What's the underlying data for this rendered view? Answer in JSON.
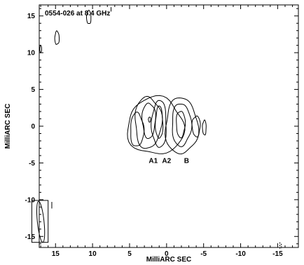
{
  "chart_data": {
    "type": "contour",
    "title": "0554-026 at 8.4 GHz",
    "xlabel": "MilliARC SEC",
    "ylabel": "MilliARC SEC",
    "xlim": [
      17.2,
      -17.8
    ],
    "ylim": [
      -16.5,
      16.5
    ],
    "x_ticks": [
      15,
      10,
      5,
      0,
      -5,
      -10,
      -15
    ],
    "y_ticks": [
      15,
      10,
      5,
      0,
      -5,
      -10,
      -15
    ],
    "x_tick_labels": [
      "15",
      "10",
      "5",
      "0",
      "-5",
      "-10",
      "-15"
    ],
    "y_tick_labels": [
      "15",
      "10",
      "5",
      "0",
      "-5",
      "-10",
      "-15"
    ],
    "annotations": [
      {
        "text": "A1",
        "x": 1.8,
        "y": -5.0
      },
      {
        "text": "A2",
        "x": 0.0,
        "y": -5.0
      },
      {
        "text": "B",
        "x": -2.7,
        "y": -5.0
      }
    ],
    "components": [
      {
        "name": "A1",
        "x": 2.5,
        "y": 0.8
      },
      {
        "name": "A2",
        "x": 1.2,
        "y": 0.5
      },
      {
        "name": "B",
        "x": -2.0,
        "y": 0.3
      }
    ],
    "contours": [
      {
        "component": "A-outer",
        "cx": 1.5,
        "cy": 0.0,
        "rx": 3.8,
        "ry": 3.9,
        "level": 1
      },
      {
        "component": "A-bay",
        "cx": 4.0,
        "cy": -0.5,
        "rx": 0.9,
        "ry": 2.3,
        "level": 1
      },
      {
        "component": "A1",
        "cx": 2.5,
        "cy": 0.5,
        "rx": 1.8,
        "ry": 3.5,
        "level": 2
      },
      {
        "component": "A1",
        "cx": 2.4,
        "cy": 0.8,
        "rx": 0.9,
        "ry": 2.4,
        "level": 3
      },
      {
        "component": "A1",
        "cx": 2.3,
        "cy": 0.9,
        "rx": 0.15,
        "ry": 0.35,
        "level": 4
      },
      {
        "component": "A2",
        "cx": 1.0,
        "cy": 0.3,
        "rx": 1.0,
        "ry": 3.2,
        "level": 2
      },
      {
        "component": "A2",
        "cx": 1.0,
        "cy": 0.5,
        "rx": 0.5,
        "ry": 2.2,
        "level": 3
      },
      {
        "component": "B",
        "cx": -2.0,
        "cy": 0.0,
        "rx": 2.2,
        "ry": 3.8,
        "level": 1
      },
      {
        "component": "B",
        "cx": -2.0,
        "cy": 0.2,
        "rx": 1.3,
        "ry": 2.9,
        "level": 2
      },
      {
        "component": "B",
        "cx": -1.9,
        "cy": 0.3,
        "rx": 0.6,
        "ry": 1.8,
        "level": 3
      },
      {
        "component": "B-east",
        "cx": -4.0,
        "cy": 0.0,
        "rx": 0.55,
        "ry": 1.4,
        "level": 1
      },
      {
        "component": "B-far",
        "cx": -5.1,
        "cy": -0.2,
        "rx": 0.25,
        "ry": 1.0,
        "level": 1
      },
      {
        "component": "noise",
        "cx": 10.5,
        "cy": 14.8,
        "rx": 0.3,
        "ry": 0.9,
        "level": 1
      },
      {
        "component": "noise",
        "cx": 14.8,
        "cy": 12.0,
        "rx": 0.3,
        "ry": 0.9,
        "level": 1
      },
      {
        "component": "noise",
        "cx": 17.0,
        "cy": 10.5,
        "rx": 0.12,
        "ry": 0.5,
        "level": 1
      }
    ],
    "noise_marks": [
      {
        "x": 7.5,
        "y": 16.2,
        "dy": 0.6
      },
      {
        "x": 15.5,
        "y": -10.3,
        "dy": 0.9
      },
      {
        "x": -15.3,
        "y": -15.8,
        "dy": 0.9,
        "dashed": true
      },
      {
        "x": -15.5,
        "y": -16.0,
        "dy": 0.7,
        "dashed": true
      }
    ],
    "beam": {
      "cx": 17.0,
      "cy": -13.0,
      "major_mas": 5.6,
      "minor_mas": 0.9,
      "pa_deg": 6,
      "box": {
        "x_min": 16.0,
        "x_max": 18.2,
        "y_min": -15.8,
        "y_max": -10.1
      }
    },
    "grid": false,
    "legend": "none"
  }
}
